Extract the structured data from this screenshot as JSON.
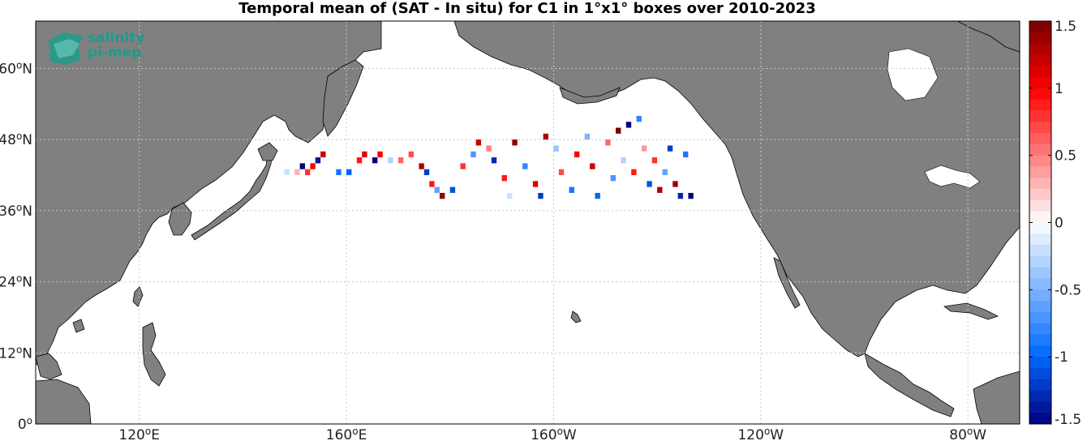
{
  "title": "Temporal mean of (SAT - In situ) for C1 in 1°x1° boxes over 2010-2023",
  "logo": {
    "line1": "salinity",
    "line2": "pi-mep",
    "icon": "salinity-pi-mep-logo-icon"
  },
  "colors": {
    "land": "#808080",
    "ocean": "#ffffff",
    "grid": "#bdbdbd",
    "logo": "#1c9c8a"
  },
  "axes": {
    "lat_labels": [
      {
        "deg": "60",
        "hemi": "N"
      },
      {
        "deg": "48",
        "hemi": "N"
      },
      {
        "deg": "36",
        "hemi": "N"
      },
      {
        "deg": "24",
        "hemi": "N"
      },
      {
        "deg": "12",
        "hemi": "N"
      },
      {
        "deg": "0",
        "hemi": ""
      }
    ],
    "lon_labels": [
      {
        "deg": "120",
        "hemi": "E"
      },
      {
        "deg": "160",
        "hemi": "E"
      },
      {
        "deg": "160",
        "hemi": "W"
      },
      {
        "deg": "120",
        "hemi": "W"
      },
      {
        "deg": "80",
        "hemi": "W"
      }
    ],
    "lat_values": [
      60,
      48,
      36,
      24,
      12,
      0
    ],
    "lon_values": [
      120,
      160,
      200,
      240,
      280
    ],
    "lon_range": [
      100,
      290
    ],
    "lat_range": [
      0,
      68
    ]
  },
  "colorbar": {
    "ticks": [
      "1.5",
      "1",
      "0.5",
      "0",
      "-0.5",
      "-1",
      "-1.5"
    ],
    "tick_values": [
      1.5,
      1,
      0.5,
      0,
      -0.5,
      -1,
      -1.5
    ],
    "range": [
      -1.5,
      1.5
    ],
    "colormap": "blue-white-red"
  },
  "chart_data": {
    "type": "heatmap",
    "title": "Temporal mean of (SAT - In situ) for C1 in 1°x1° boxes over 2010-2023",
    "xlabel": "",
    "ylabel": "",
    "x_range_deg_east": [
      100,
      290
    ],
    "y_range_deg_north": [
      0,
      68
    ],
    "cell_size_deg": 1,
    "value_range": [
      -1.5,
      1.5
    ],
    "cells_approx": [
      [
        148,
        42,
        -0.2
      ],
      [
        150,
        42,
        0.3
      ],
      [
        151,
        43,
        -1.5
      ],
      [
        152,
        42,
        0.8
      ],
      [
        153,
        43,
        1.0
      ],
      [
        154,
        44,
        -1.4
      ],
      [
        155,
        45,
        1.2
      ],
      [
        158,
        42,
        -0.9
      ],
      [
        160,
        42,
        -1.0
      ],
      [
        162,
        44,
        0.9
      ],
      [
        163,
        45,
        1.1
      ],
      [
        165,
        44,
        -1.5
      ],
      [
        166,
        45,
        1.0
      ],
      [
        168,
        44,
        -0.3
      ],
      [
        170,
        44,
        0.6
      ],
      [
        172,
        45,
        0.7
      ],
      [
        174,
        43,
        1.3
      ],
      [
        175,
        42,
        -1.2
      ],
      [
        176,
        40,
        0.9
      ],
      [
        177,
        39,
        -0.6
      ],
      [
        178,
        38,
        1.4
      ],
      [
        180,
        39,
        -1.1
      ],
      [
        182,
        43,
        0.8
      ],
      [
        184,
        45,
        -0.7
      ],
      [
        185,
        47,
        1.2
      ],
      [
        187,
        46,
        0.5
      ],
      [
        188,
        44,
        -1.3
      ],
      [
        190,
        41,
        0.9
      ],
      [
        191,
        38,
        -0.2
      ],
      [
        192,
        47,
        1.4
      ],
      [
        194,
        43,
        -0.8
      ],
      [
        196,
        40,
        1.1
      ],
      [
        197,
        38,
        -1.2
      ],
      [
        198,
        48,
        1.3
      ],
      [
        200,
        46,
        -0.4
      ],
      [
        201,
        42,
        0.7
      ],
      [
        203,
        39,
        -0.9
      ],
      [
        204,
        45,
        1.0
      ],
      [
        206,
        48,
        -0.5
      ],
      [
        207,
        43,
        1.2
      ],
      [
        208,
        38,
        -1.0
      ],
      [
        210,
        47,
        0.6
      ],
      [
        211,
        41,
        -0.7
      ],
      [
        212,
        49,
        1.5
      ],
      [
        213,
        44,
        -0.3
      ],
      [
        214,
        50,
        -1.5
      ],
      [
        215,
        42,
        0.9
      ],
      [
        216,
        51,
        -0.8
      ],
      [
        217,
        46,
        0.4
      ],
      [
        218,
        40,
        -1.1
      ],
      [
        219,
        44,
        0.8
      ],
      [
        220,
        39,
        1.3
      ],
      [
        221,
        42,
        -0.6
      ],
      [
        222,
        46,
        -1.2
      ],
      [
        223,
        40,
        1.4
      ],
      [
        224,
        38,
        -1.3
      ],
      [
        225,
        45,
        -0.9
      ],
      [
        226,
        38,
        -1.5
      ]
    ]
  }
}
